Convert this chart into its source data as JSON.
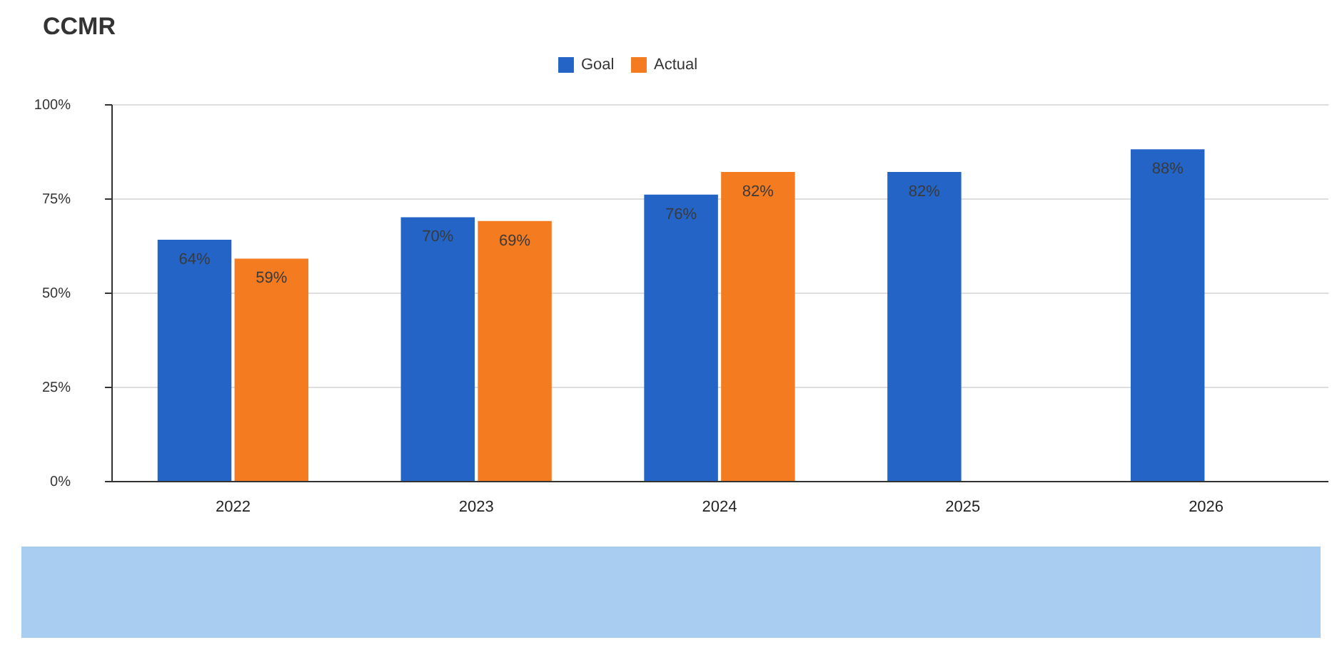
{
  "chart_data": {
    "type": "bar",
    "title": "CCMR",
    "categories": [
      "2022",
      "2023",
      "2024",
      "2025",
      "2026"
    ],
    "series": [
      {
        "name": "Goal",
        "color": "#2364c6",
        "values": [
          64,
          70,
          76,
          82,
          88
        ],
        "value_labels": [
          "64%",
          "70%",
          "76%",
          "82%",
          "88%"
        ]
      },
      {
        "name": "Actual",
        "color": "#f47b20",
        "values": [
          59,
          69,
          82,
          null,
          null
        ],
        "value_labels": [
          "59%",
          "69%",
          "82%",
          null,
          null
        ]
      }
    ],
    "ylim": [
      0,
      100
    ],
    "yticks": [
      {
        "value": 0,
        "label": "0%"
      },
      {
        "value": 25,
        "label": "25%"
      },
      {
        "value": 50,
        "label": "50%"
      },
      {
        "value": 75,
        "label": "75%"
      },
      {
        "value": 100,
        "label": "100%"
      }
    ],
    "grid": "y",
    "legend": "top"
  }
}
